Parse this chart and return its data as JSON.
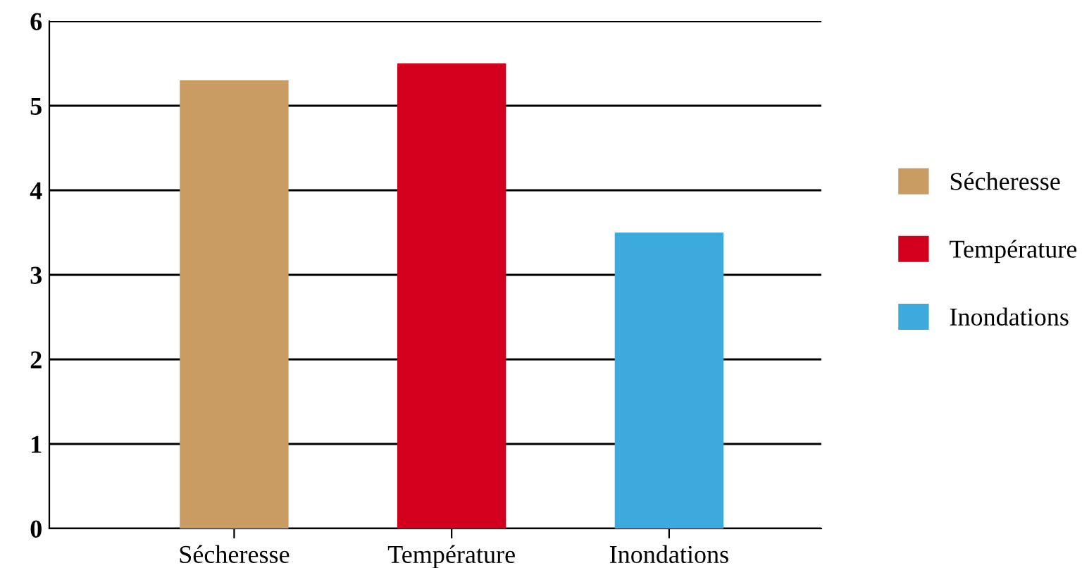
{
  "chart_data": {
    "type": "bar",
    "categories": [
      "Sécheresse",
      "Température",
      "Inondations"
    ],
    "stacked": true,
    "series": [
      {
        "name": "Sécheresse",
        "color": "#c89c63",
        "values": [
          5.3,
          null,
          null
        ]
      },
      {
        "name": "Température",
        "color": "#d2001c",
        "values": [
          null,
          5.5,
          null
        ]
      },
      {
        "name": "Inondations",
        "color": "#3caadc",
        "values": [
          null,
          null,
          3.5
        ]
      }
    ],
    "ylim": [
      0,
      6
    ],
    "yticks": [
      0,
      1,
      2,
      3,
      4,
      5,
      6
    ],
    "grid": "y",
    "legend": "right"
  }
}
